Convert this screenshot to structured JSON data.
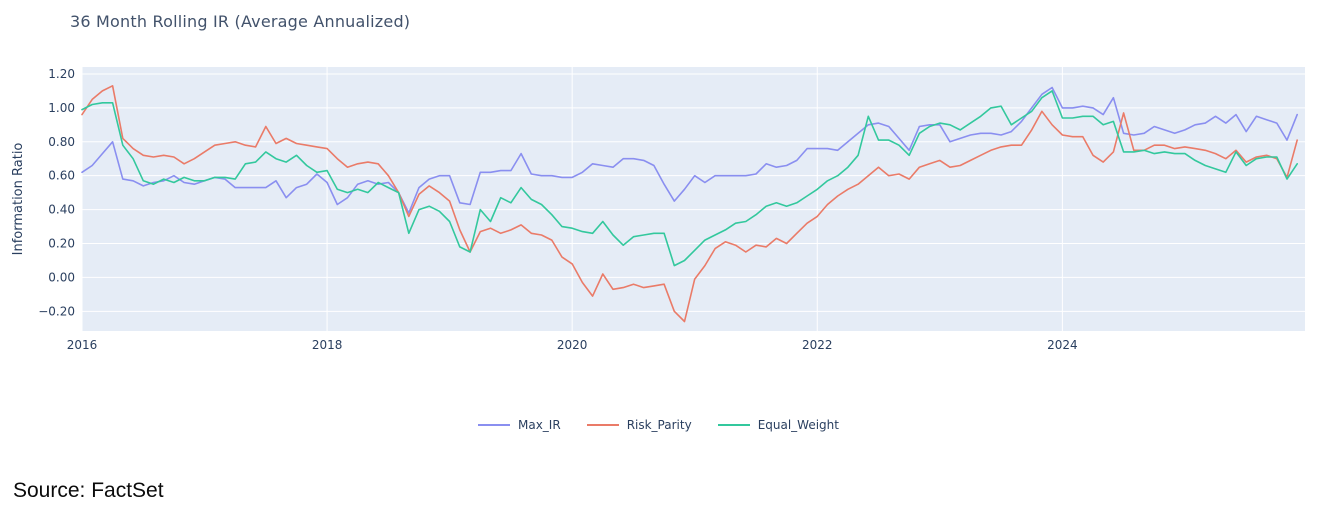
{
  "page": {
    "title": "36 Month Rolling IR (Average Annualized)",
    "source_note": "Source: FactSet"
  },
  "colors": {
    "plot_background": "#e5ecf6",
    "gridline": "#ffffff",
    "tick_text": "#2a3f5f",
    "title_text": "#42526b",
    "max_ir": "#8a8ff0",
    "risk_parity": "#ea7b68",
    "equal_weight": "#33c89d"
  },
  "chart_data": {
    "type": "line",
    "title": "36 Month Rolling IR (Average Annualized)",
    "xlabel": "",
    "ylabel": "Information Ratio",
    "legend_position": "bottom-center",
    "grid": true,
    "x_start_year": 2016,
    "x_step_months": 1,
    "xlim": [
      2016.0,
      2025.98
    ],
    "ylim": [
      -0.316,
      1.241
    ],
    "xticks": {
      "values": [
        2016,
        2018,
        2020,
        2022,
        2024
      ],
      "labels": [
        "2016",
        "2018",
        "2020",
        "2022",
        "2024"
      ]
    },
    "yticks": {
      "values": [
        1.2,
        1.0,
        0.8,
        0.6,
        0.4,
        0.2,
        0.0,
        -0.2
      ],
      "labels": [
        "1.20",
        "1.00",
        "0.80",
        "0.60",
        "0.40",
        "0.20",
        "0.00",
        "−0.20"
      ]
    },
    "series": [
      {
        "name": "Max_IR",
        "color": "#8a8ff0",
        "values": [
          0.62,
          0.66,
          0.73,
          0.8,
          0.58,
          0.57,
          0.54,
          0.56,
          0.57,
          0.6,
          0.56,
          0.55,
          0.57,
          0.59,
          0.58,
          0.53,
          0.53,
          0.53,
          0.53,
          0.57,
          0.47,
          0.53,
          0.55,
          0.61,
          0.56,
          0.43,
          0.47,
          0.55,
          0.57,
          0.55,
          0.56,
          0.5,
          0.38,
          0.53,
          0.58,
          0.6,
          0.6,
          0.44,
          0.43,
          0.62,
          0.62,
          0.63,
          0.63,
          0.73,
          0.61,
          0.6,
          0.6,
          0.59,
          0.59,
          0.62,
          0.67,
          0.66,
          0.65,
          0.7,
          0.7,
          0.69,
          0.66,
          0.55,
          0.45,
          0.52,
          0.6,
          0.56,
          0.6,
          0.6,
          0.6,
          0.6,
          0.61,
          0.67,
          0.65,
          0.66,
          0.69,
          0.76,
          0.76,
          0.76,
          0.75,
          0.8,
          0.85,
          0.9,
          0.91,
          0.89,
          0.82,
          0.75,
          0.89,
          0.9,
          0.9,
          0.8,
          0.82,
          0.84,
          0.85,
          0.85,
          0.84,
          0.86,
          0.92,
          1.0,
          1.08,
          1.12,
          1.0,
          1.0,
          1.01,
          1.0,
          0.96,
          1.06,
          0.85,
          0.84,
          0.85,
          0.89,
          0.87,
          0.85,
          0.87,
          0.9,
          0.91,
          0.95,
          0.91,
          0.96,
          0.86,
          0.95,
          0.93,
          0.91,
          0.81,
          0.96
        ]
      },
      {
        "name": "Risk_Parity",
        "color": "#ea7b68",
        "values": [
          0.96,
          1.05,
          1.1,
          1.13,
          0.82,
          0.76,
          0.72,
          0.71,
          0.72,
          0.71,
          0.67,
          0.7,
          0.74,
          0.78,
          0.79,
          0.8,
          0.78,
          0.77,
          0.89,
          0.79,
          0.82,
          0.79,
          0.78,
          0.77,
          0.76,
          0.7,
          0.65,
          0.67,
          0.68,
          0.67,
          0.6,
          0.5,
          0.36,
          0.49,
          0.54,
          0.5,
          0.45,
          0.28,
          0.15,
          0.27,
          0.29,
          0.26,
          0.28,
          0.31,
          0.26,
          0.25,
          0.22,
          0.12,
          0.08,
          -0.03,
          -0.11,
          0.02,
          -0.07,
          -0.06,
          -0.04,
          -0.06,
          -0.05,
          -0.04,
          -0.2,
          -0.26,
          -0.01,
          0.07,
          0.17,
          0.21,
          0.19,
          0.15,
          0.19,
          0.18,
          0.23,
          0.2,
          0.26,
          0.32,
          0.36,
          0.43,
          0.48,
          0.52,
          0.55,
          0.6,
          0.65,
          0.6,
          0.61,
          0.58,
          0.65,
          0.67,
          0.69,
          0.65,
          0.66,
          0.69,
          0.72,
          0.75,
          0.77,
          0.78,
          0.78,
          0.87,
          0.98,
          0.9,
          0.84,
          0.83,
          0.83,
          0.72,
          0.68,
          0.74,
          0.97,
          0.75,
          0.75,
          0.78,
          0.78,
          0.76,
          0.77,
          0.76,
          0.75,
          0.73,
          0.7,
          0.75,
          0.68,
          0.71,
          0.72,
          0.7,
          0.59,
          0.81
        ]
      },
      {
        "name": "Equal_Weight",
        "color": "#33c89d",
        "values": [
          0.99,
          1.02,
          1.03,
          1.03,
          0.78,
          0.7,
          0.57,
          0.55,
          0.58,
          0.56,
          0.59,
          0.57,
          0.57,
          0.59,
          0.59,
          0.58,
          0.67,
          0.68,
          0.74,
          0.7,
          0.68,
          0.72,
          0.66,
          0.62,
          0.63,
          0.52,
          0.5,
          0.52,
          0.5,
          0.56,
          0.53,
          0.5,
          0.26,
          0.4,
          0.42,
          0.39,
          0.33,
          0.18,
          0.15,
          0.4,
          0.33,
          0.47,
          0.44,
          0.53,
          0.46,
          0.43,
          0.37,
          0.3,
          0.29,
          0.27,
          0.26,
          0.33,
          0.25,
          0.19,
          0.24,
          0.25,
          0.26,
          0.26,
          0.07,
          0.1,
          0.16,
          0.22,
          0.25,
          0.28,
          0.32,
          0.33,
          0.37,
          0.42,
          0.44,
          0.42,
          0.44,
          0.48,
          0.52,
          0.57,
          0.6,
          0.65,
          0.72,
          0.95,
          0.81,
          0.81,
          0.78,
          0.72,
          0.85,
          0.89,
          0.91,
          0.9,
          0.87,
          0.91,
          0.95,
          1.0,
          1.01,
          0.9,
          0.94,
          0.98,
          1.06,
          1.1,
          0.94,
          0.94,
          0.95,
          0.95,
          0.9,
          0.92,
          0.74,
          0.74,
          0.75,
          0.73,
          0.74,
          0.73,
          0.73,
          0.69,
          0.66,
          0.64,
          0.62,
          0.74,
          0.66,
          0.7,
          0.71,
          0.71,
          0.58,
          0.67
        ]
      }
    ]
  }
}
